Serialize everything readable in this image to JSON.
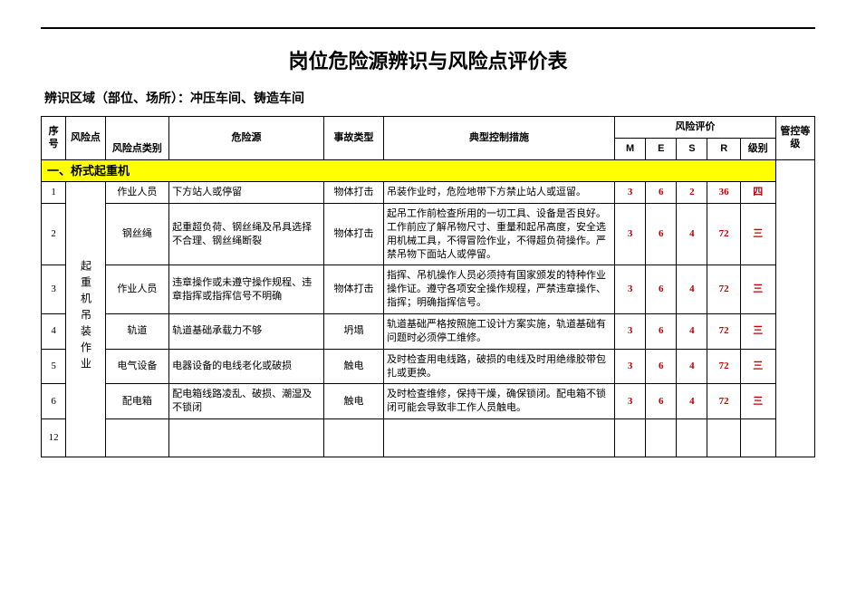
{
  "title": "岗位危险源辨识与风险点评价表",
  "subtitle": "辨识区域（部位、场所）：冲压车间、铸造车间",
  "headers": {
    "seq": "序号",
    "riskPoint": "风险点",
    "category": "风险点类别",
    "source": "危险源",
    "accidentType": "事故类型",
    "control": "典型控制措施",
    "riskEvalGroup": "风险评价",
    "M": "M",
    "E": "E",
    "S": "S",
    "R": "R",
    "level": "级别",
    "mgmtLevel": "管控等级"
  },
  "section": "一、桥式起重机",
  "riskPointVertical": "起重机吊装作业",
  "rows": [
    {
      "seq": "1",
      "category": "作业人员",
      "source": "下方站人或停留",
      "accidentType": "物体打击",
      "control": "吊装作业时，危险地带下方禁止站人或逗留。",
      "M": "3",
      "E": "6",
      "S": "2",
      "R": "36",
      "level": "四"
    },
    {
      "seq": "2",
      "category": "钢丝绳",
      "source": "起重超负荷、钢丝绳及吊具选择不合理、钢丝绳断裂",
      "accidentType": "物体打击",
      "control": "起吊工作前检查所用的一切工具、设备是否良好。工作前应了解吊物尺寸、重量和起吊高度，安全选用机械工具，不得冒险作业，不得超负荷操作。严禁吊物下面站人或停留。",
      "M": "3",
      "E": "6",
      "S": "4",
      "R": "72",
      "level": "三"
    },
    {
      "seq": "3",
      "category": "作业人员",
      "source": "违章操作或未遵守操作规程、违章指挥或指挥信号不明确",
      "accidentType": "物体打击",
      "control": "指挥、吊机操作人员必须持有国家颁发的特种作业操作证。遵守各项安全操作规程，严禁违章操作、指挥；明确指挥信号。",
      "M": "3",
      "E": "6",
      "S": "4",
      "R": "72",
      "level": "三"
    },
    {
      "seq": "4",
      "category": "轨道",
      "source": "轨道基础承载力不够",
      "accidentType": "坍塌",
      "control": "轨道基础严格按照施工设计方案实施，轨道基础有问题时必须停工维修。",
      "M": "3",
      "E": "6",
      "S": "4",
      "R": "72",
      "level": "三"
    },
    {
      "seq": "5",
      "category": "电气设备",
      "source": "电器设备的电线老化或破损",
      "accidentType": "触电",
      "control": "及时检查用电线路，破损的电线及时用绝缘胶带包扎或更换。",
      "M": "3",
      "E": "6",
      "S": "4",
      "R": "72",
      "level": "三"
    },
    {
      "seq": "6",
      "category": "配电箱",
      "source": "配电箱线路凌乱、破损、潮湿及不锁闭",
      "accidentType": "触电",
      "control": "及时检查维修，保持干燥，确保锁闭。配电箱不锁闭可能会导致非工作人员触电。",
      "M": "3",
      "E": "6",
      "S": "4",
      "R": "72",
      "level": "三"
    }
  ],
  "lastSeq": "12",
  "colors": {
    "sectionBg": "#ffff00",
    "redText": "#c00000",
    "border": "#000000",
    "background": "#ffffff"
  }
}
